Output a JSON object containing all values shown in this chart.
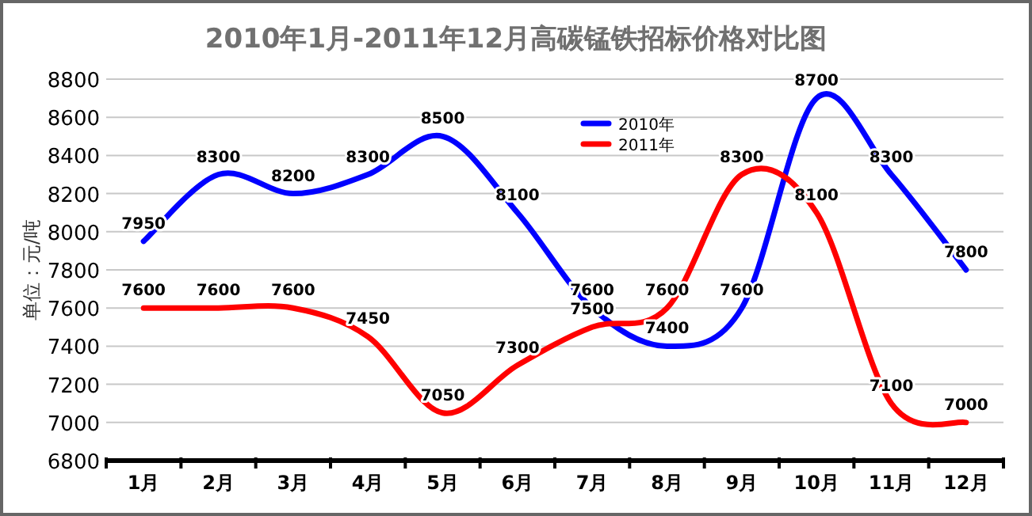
{
  "chart_data": {
    "type": "line",
    "title": "2010年1月-2011年12月高碳锰铁招标价格对比图",
    "ylabel": "单位：元/吨",
    "categories": [
      "1月",
      "2月",
      "3月",
      "4月",
      "5月",
      "6月",
      "7月",
      "8月",
      "9月",
      "10月",
      "11月",
      "12月"
    ],
    "series": [
      {
        "name": "2010年",
        "color": "#0000ff",
        "values": [
          7950,
          8300,
          8200,
          8300,
          8500,
          8100,
          7600,
          7400,
          7600,
          8700,
          8300,
          7800
        ]
      },
      {
        "name": "2011年",
        "color": "#ff0000",
        "values": [
          7600,
          7600,
          7600,
          7450,
          7050,
          7300,
          7500,
          7600,
          8300,
          8100,
          7100,
          7000
        ]
      }
    ],
    "ylim": [
      6800,
      8800
    ],
    "yticks": [
      6800,
      7000,
      7200,
      7400,
      7600,
      7800,
      8000,
      8200,
      8400,
      8600,
      8800
    ],
    "grid": "y",
    "legend": "top",
    "data_labels": true,
    "marker": "none",
    "line_style": "solid"
  }
}
